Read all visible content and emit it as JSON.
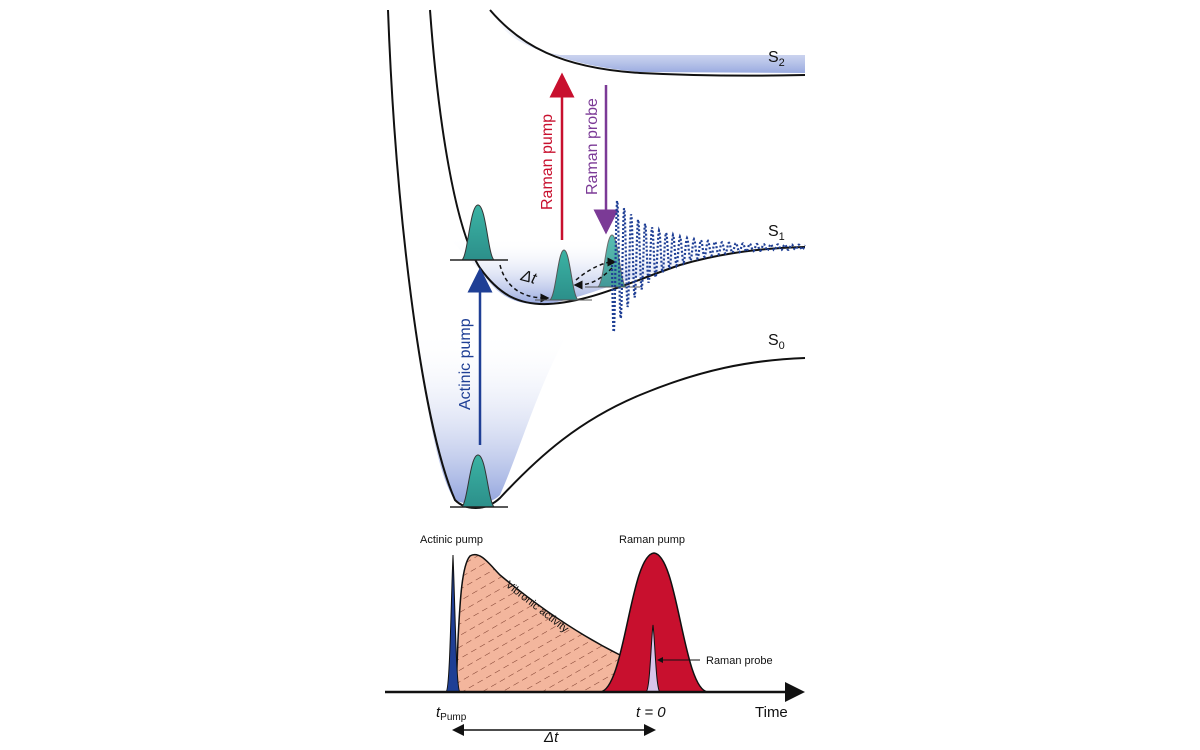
{
  "diagram": {
    "states": [
      {
        "id": "S2",
        "base": "S",
        "sub": "2"
      },
      {
        "id": "S1",
        "base": "S",
        "sub": "1"
      },
      {
        "id": "S0",
        "base": "S",
        "sub": "0"
      }
    ],
    "arrows": {
      "actinic_pump": "Actinic pump",
      "raman_pump": "Raman pump",
      "raman_probe": "Raman probe",
      "delay": "Δt"
    },
    "colors": {
      "well_fill": "#9fb0e2",
      "packet_fill": "#2fa79a",
      "actinic_arrow": "#1f3f95",
      "raman_pump_arrow": "#c8102e",
      "raman_probe_arrow": "#7b3a96",
      "oscillation": "#1f3f95",
      "raman_pulse_fill": "#c8102e",
      "vibronic_fill": "#f4b79f",
      "time_axis": "#111111"
    }
  },
  "timeline": {
    "actinic_pump_label": "Actinic pump",
    "raman_pump_label": "Raman pump",
    "raman_probe_label": "Raman probe",
    "vibronic_label": "Vibronic activity",
    "time_label": "Time",
    "t_pump_base": "t",
    "t_pump_sub": "Pump",
    "t_zero": "t = 0",
    "delta_t": "Δt"
  }
}
